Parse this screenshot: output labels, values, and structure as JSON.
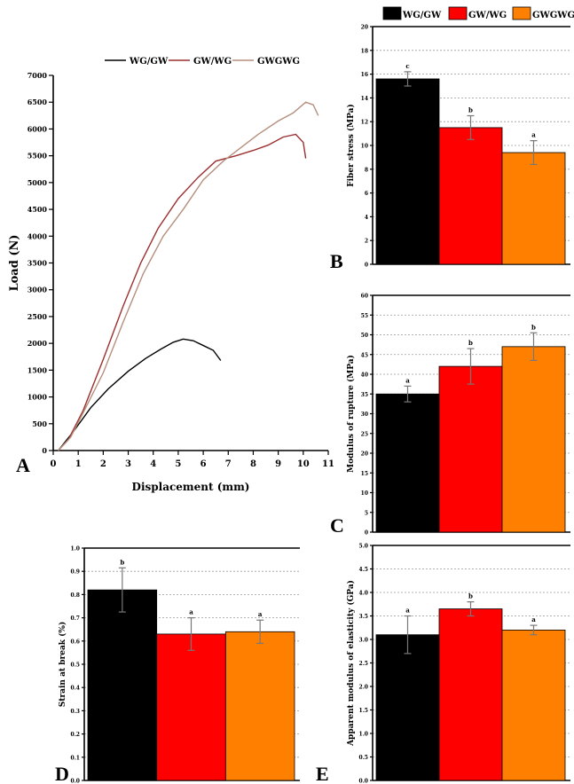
{
  "panel_labels": [
    "A",
    "B",
    "C",
    "D",
    "E"
  ],
  "chart_data": [
    {
      "panel": "A",
      "type": "line",
      "xlabel": "Displacement (mm)",
      "ylabel": "Load (N)",
      "xlim": [
        0,
        11
      ],
      "ylim": [
        0,
        7000
      ],
      "x_ticks": [
        "0",
        "1",
        "2",
        "3",
        "4",
        "5",
        "6",
        "7",
        "8",
        "9",
        "10",
        "11"
      ],
      "y_ticks": [
        "0",
        "500",
        "1000",
        "1500",
        "2000",
        "2500",
        "3000",
        "3500",
        "4000",
        "4500",
        "5000",
        "5500",
        "6000",
        "6500",
        "7000"
      ],
      "legend_position": "top",
      "colors": {
        "WG/GW": "#000000",
        "GW/WG": "#9b2f2f",
        "GWGWG": "#b58f7e"
      },
      "series": [
        {
          "name": "WG/GW",
          "x": [
            0.2,
            0.8,
            1.5,
            2.2,
            3.0,
            3.7,
            4.3,
            4.8,
            5.2,
            5.6,
            6.0,
            6.4,
            6.7
          ],
          "y": [
            0,
            350,
            800,
            1150,
            1480,
            1720,
            1890,
            2020,
            2080,
            2050,
            1960,
            1870,
            1680
          ]
        },
        {
          "name": "GW/WG",
          "x": [
            0.2,
            0.6,
            1.2,
            2.0,
            2.8,
            3.5,
            4.2,
            5.0,
            5.8,
            6.5,
            7.3,
            8.0,
            8.6,
            9.2,
            9.7,
            10.0,
            10.1
          ],
          "y": [
            0,
            200,
            750,
            1700,
            2700,
            3500,
            4150,
            4700,
            5100,
            5400,
            5500,
            5600,
            5700,
            5850,
            5900,
            5750,
            5450
          ]
        },
        {
          "name": "GWGWG",
          "x": [
            0.2,
            0.7,
            1.3,
            2.0,
            2.8,
            3.6,
            4.4,
            5.2,
            6.0,
            6.8,
            7.5,
            8.2,
            9.0,
            9.6,
            10.1,
            10.4,
            10.6
          ],
          "y": [
            0,
            250,
            800,
            1450,
            2400,
            3300,
            4000,
            4500,
            5050,
            5400,
            5650,
            5900,
            6150,
            6300,
            6500,
            6450,
            6250
          ]
        }
      ]
    },
    {
      "panel": "B",
      "type": "bar",
      "ylabel": "Fiber stress (MPa)",
      "ylim": [
        0,
        20
      ],
      "y_ticks": [
        "0",
        "2",
        "4",
        "6",
        "8",
        "10",
        "12",
        "14",
        "16",
        "18",
        "20"
      ],
      "categories": [
        "WG/GW",
        "GW/WG",
        "GWGWG"
      ],
      "values": [
        15.6,
        11.5,
        9.4
      ],
      "errors": [
        0.6,
        1.0,
        1.0
      ],
      "letters": [
        "c",
        "b",
        "a"
      ],
      "colors": [
        "#000000",
        "#ff0000",
        "#ff8000"
      ],
      "legend_position": "top"
    },
    {
      "panel": "C",
      "type": "bar",
      "ylabel": "Modulus of rupture (MPa)",
      "ylim": [
        0,
        60
      ],
      "y_ticks": [
        "0",
        "5",
        "10",
        "15",
        "20",
        "25",
        "30",
        "35",
        "40",
        "45",
        "50",
        "55",
        "60"
      ],
      "categories": [
        "WG/GW",
        "GW/WG",
        "GWGWG"
      ],
      "values": [
        35,
        42,
        47
      ],
      "errors": [
        2,
        4.5,
        3.5
      ],
      "letters": [
        "a",
        "b",
        "b"
      ],
      "colors": [
        "#000000",
        "#ff0000",
        "#ff8000"
      ]
    },
    {
      "panel": "D",
      "type": "bar",
      "ylabel": "Strain at break (%)",
      "ylim": [
        0,
        1.0
      ],
      "y_ticks": [
        "0.0",
        "0.1",
        "0.2",
        "0.3",
        "0.4",
        "0.5",
        "0.6",
        "0.7",
        "0.8",
        "0.9",
        "1.0"
      ],
      "categories": [
        "WG/GW",
        "GW/WG",
        "GWGWG"
      ],
      "values": [
        0.82,
        0.63,
        0.64
      ],
      "errors": [
        0.095,
        0.07,
        0.05
      ],
      "letters": [
        "b",
        "a",
        "a"
      ],
      "colors": [
        "#000000",
        "#ff0000",
        "#ff8000"
      ]
    },
    {
      "panel": "E",
      "type": "bar",
      "ylabel": "Apparent modulus of elasticity (GPa)",
      "ylim": [
        0,
        5.0
      ],
      "y_ticks": [
        "0.0",
        "0.5",
        "1.0",
        "1.5",
        "2.0",
        "2.5",
        "3.0",
        "3.5",
        "4.0",
        "4.5",
        "5.0"
      ],
      "categories": [
        "WG/GW",
        "GW/WG",
        "GWGWG"
      ],
      "values": [
        3.1,
        3.65,
        3.2
      ],
      "errors": [
        0.4,
        0.15,
        0.1
      ],
      "letters": [
        "a",
        "b",
        "a"
      ],
      "colors": [
        "#000000",
        "#ff0000",
        "#ff8000"
      ]
    }
  ]
}
